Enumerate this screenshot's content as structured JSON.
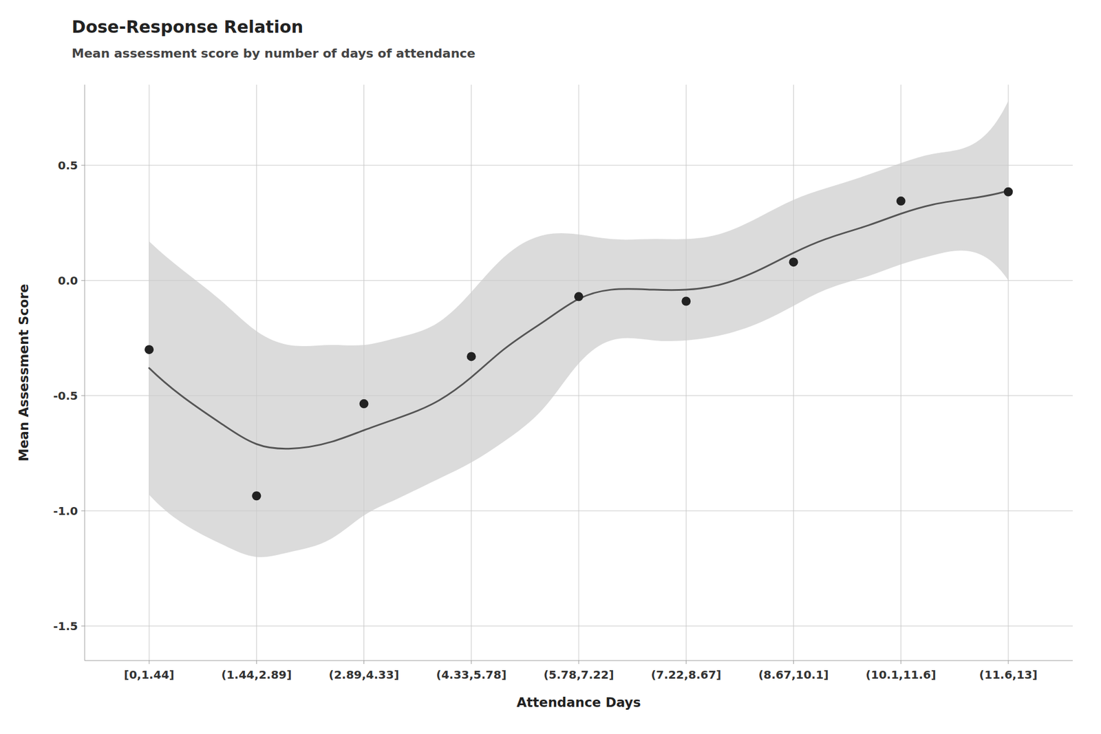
{
  "chart_data": {
    "type": "line",
    "title": "Dose-Response Relation",
    "subtitle": "Mean assessment score by number of days of attendance",
    "x_label": "Attendance Days",
    "y_label": "Mean Assessment Score",
    "xlim": [
      0.4,
      9.6
    ],
    "xticks": [
      {
        "value": 1,
        "label": "[0,1.44]"
      },
      {
        "value": 2,
        "label": "(1.44,2.89]"
      },
      {
        "value": 3,
        "label": "(2.89,4.33]"
      },
      {
        "value": 4,
        "label": "(4.33,5.78]"
      },
      {
        "value": 5,
        "label": "(5.78,7.22]"
      },
      {
        "value": 6,
        "label": "(7.22,8.67]"
      },
      {
        "value": 7,
        "label": "(8.67,10.1]"
      },
      {
        "value": 8,
        "label": "(10.1,11.6]"
      },
      {
        "value": 9,
        "label": "(11.6,13]"
      }
    ],
    "ylim": [
      -1.65,
      0.85
    ],
    "yticks": [
      -1.5,
      {
        "value": -1.0,
        "label": "-1.0"
      },
      -0.5,
      {
        "value": 0.0,
        "label": "0.0"
      },
      0.5
    ],
    "grid": true,
    "series": [
      {
        "type": "band",
        "color": "#cccccc",
        "x": [
          1,
          1.3,
          1.7,
          2,
          2.3,
          2.7,
          3,
          3.3,
          3.7,
          4,
          4.3,
          4.7,
          5,
          5.3,
          5.7,
          6,
          6.3,
          6.7,
          7,
          7.3,
          7.7,
          8,
          8.3,
          8.7,
          9
        ],
        "upper": [
          0.17,
          0.05,
          -0.1,
          -0.22,
          -0.28,
          -0.28,
          -0.28,
          -0.25,
          -0.18,
          -0.05,
          0.1,
          0.2,
          0.2,
          0.18,
          0.18,
          0.18,
          0.2,
          0.28,
          0.35,
          0.4,
          0.46,
          0.51,
          0.55,
          0.6,
          0.78
        ],
        "lower": [
          -0.93,
          -1.05,
          -1.15,
          -1.2,
          -1.18,
          -1.12,
          -1.02,
          -0.95,
          -0.86,
          -0.79,
          -0.7,
          -0.54,
          -0.36,
          -0.26,
          -0.26,
          -0.26,
          -0.24,
          -0.18,
          -0.11,
          -0.04,
          0.02,
          0.07,
          0.11,
          0.12,
          0.0
        ]
      },
      {
        "type": "line",
        "color": "#555555",
        "x": [
          1,
          1.3,
          1.7,
          2,
          2.3,
          2.7,
          3,
          3.3,
          3.7,
          4,
          4.3,
          4.7,
          5,
          5.3,
          5.7,
          6,
          6.3,
          6.7,
          7,
          7.3,
          7.7,
          8,
          8.3,
          8.7,
          9
        ],
        "values": [
          -0.38,
          -0.5,
          -0.63,
          -0.71,
          -0.73,
          -0.7,
          -0.65,
          -0.6,
          -0.52,
          -0.42,
          -0.3,
          -0.17,
          -0.08,
          -0.04,
          -0.04,
          -0.04,
          -0.02,
          0.05,
          0.12,
          0.18,
          0.24,
          0.29,
          0.33,
          0.36,
          0.39
        ]
      },
      {
        "type": "scatter",
        "color": "#222222",
        "x": [
          1,
          2,
          3,
          4,
          5,
          6,
          7,
          8,
          9
        ],
        "values": [
          -0.3,
          -0.935,
          -0.535,
          -0.33,
          -0.07,
          -0.09,
          0.08,
          0.345,
          0.385
        ]
      }
    ]
  }
}
